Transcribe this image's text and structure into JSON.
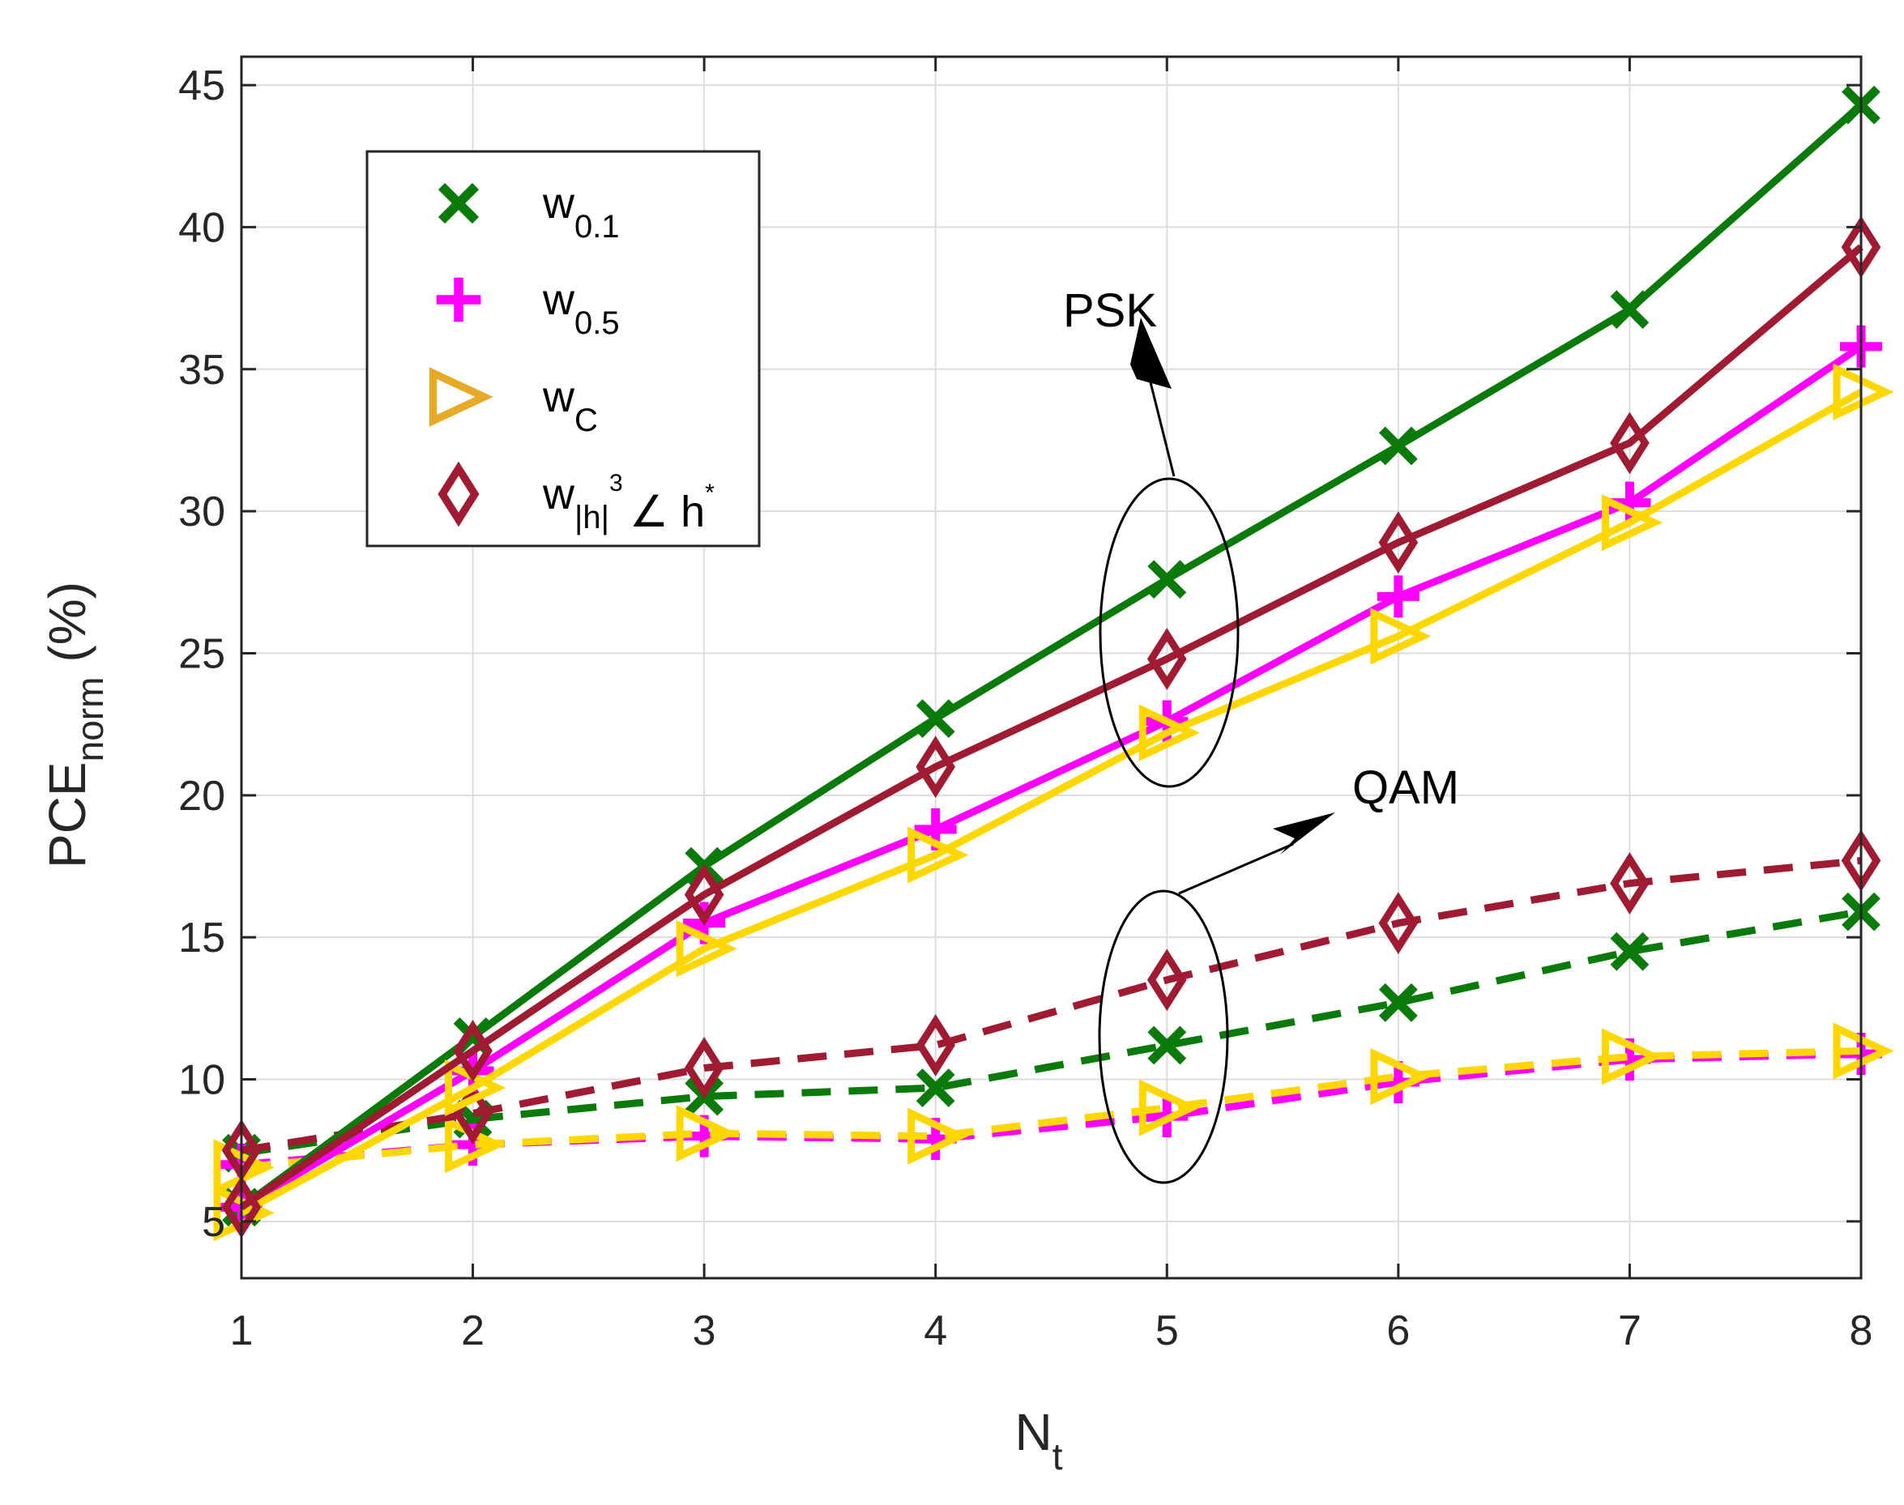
{
  "chart_data": {
    "type": "line",
    "xlabel": "N",
    "xlabel_sub": "t",
    "ylabel": "PCE",
    "ylabel_sub": "norm",
    "ylabel_unit": "(%)",
    "x": [
      1,
      2,
      3,
      4,
      5,
      6,
      7,
      8
    ],
    "xlim": [
      1,
      8
    ],
    "ylim": [
      3,
      46
    ],
    "yticks": [
      5,
      10,
      15,
      20,
      25,
      30,
      35,
      40,
      45
    ],
    "grid": true,
    "legend_position": "top-left",
    "annotations": [
      {
        "text": "PSK",
        "points_to": "solid curves at N_t = 5"
      },
      {
        "text": "QAM",
        "points_to": "dashed curves at N_t = 5"
      }
    ],
    "legend": [
      {
        "key": "w01",
        "base": "w",
        "sub": "0.1",
        "marker": "x",
        "color": "#0a7a0a"
      },
      {
        "key": "w05",
        "base": "w",
        "sub": "0.5",
        "marker": "plus",
        "color": "#ff00ff"
      },
      {
        "key": "wC",
        "base": "w",
        "sub": "C",
        "marker": "triangle-right",
        "color": "#e6aa28"
      },
      {
        "key": "wh3",
        "base": "w",
        "sub": "|h|",
        "sup": "3",
        "sub2": "∠ h",
        "sup2": "*",
        "marker": "diamond",
        "color": "#a01a32"
      }
    ],
    "series": [
      {
        "name": "w_0.1 PSK",
        "key": "w01",
        "modulation": "PSK",
        "style": "solid",
        "color": "#0a7a0a",
        "marker": "x",
        "values": [
          5.5,
          11.5,
          17.5,
          22.7,
          27.6,
          32.3,
          37.1,
          44.3
        ]
      },
      {
        "name": "w_0.5 PSK",
        "key": "w05",
        "modulation": "PSK",
        "style": "solid",
        "color": "#ff00ff",
        "marker": "plus",
        "values": [
          5.5,
          10.3,
          15.5,
          18.8,
          22.6,
          27.0,
          30.3,
          35.8
        ]
      },
      {
        "name": "w_C PSK",
        "key": "wC",
        "modulation": "PSK",
        "style": "solid",
        "color": "#ffd700",
        "marker": "triangle-right",
        "values": [
          5.3,
          9.7,
          14.6,
          17.9,
          22.2,
          25.6,
          29.6,
          34.2
        ]
      },
      {
        "name": "w_|h|^3∠h* PSK",
        "key": "wh3",
        "modulation": "PSK",
        "style": "solid",
        "color": "#a01a32",
        "marker": "diamond",
        "values": [
          5.5,
          11.0,
          16.5,
          21.0,
          24.8,
          28.9,
          32.4,
          39.3
        ]
      },
      {
        "name": "w_0.1 QAM",
        "key": "w01",
        "modulation": "QAM",
        "style": "dashed",
        "color": "#0a7a0a",
        "marker": "x",
        "values": [
          7.4,
          8.6,
          9.4,
          9.7,
          11.2,
          12.7,
          14.5,
          15.9
        ]
      },
      {
        "name": "w_0.5 QAM",
        "key": "w05",
        "modulation": "QAM",
        "style": "dashed",
        "color": "#ff00ff",
        "marker": "plus",
        "values": [
          7.0,
          7.7,
          8.0,
          7.9,
          8.7,
          9.9,
          10.7,
          10.9
        ]
      },
      {
        "name": "w_C QAM",
        "key": "wC",
        "modulation": "QAM",
        "style": "dashed",
        "color": "#ffd700",
        "marker": "triangle-right",
        "values": [
          6.9,
          7.7,
          8.1,
          8.0,
          9.0,
          10.1,
          10.8,
          11.0
        ]
      },
      {
        "name": "w_|h|^3∠h* QAM",
        "key": "wh3",
        "modulation": "QAM",
        "style": "dashed",
        "color": "#a01a32",
        "marker": "diamond",
        "values": [
          7.5,
          8.8,
          10.4,
          11.2,
          13.5,
          15.5,
          16.9,
          17.7
        ]
      }
    ]
  }
}
